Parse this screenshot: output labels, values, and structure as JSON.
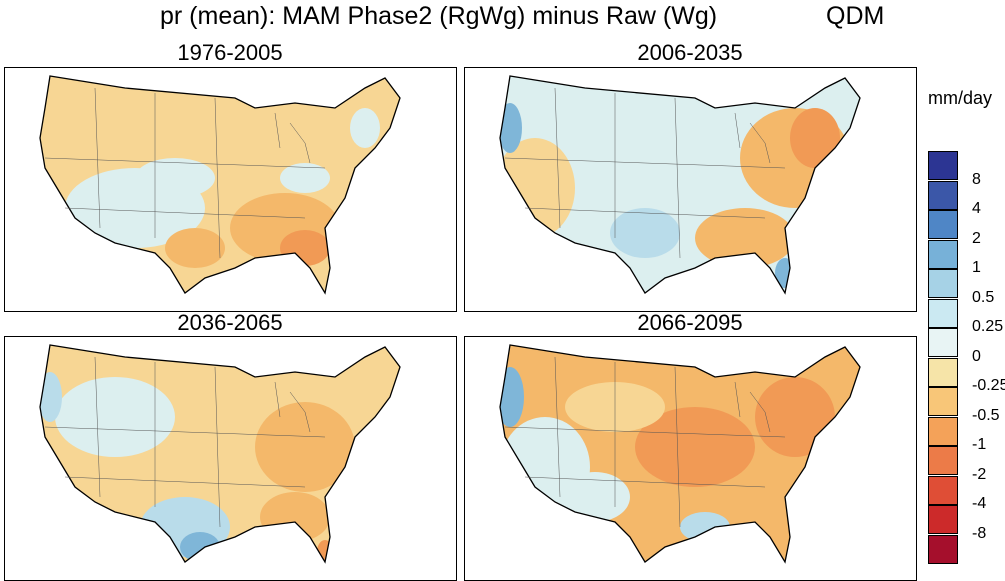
{
  "title": {
    "main": "pr (mean): MAM Phase2 (RgWg) minus Raw (Wg)",
    "method": "QDM"
  },
  "panels": [
    {
      "id": "p1",
      "label": "1976-2005"
    },
    {
      "id": "p2",
      "label": "2006-2035"
    },
    {
      "id": "p3",
      "label": "2036-2065"
    },
    {
      "id": "p4",
      "label": "2066-2095"
    }
  ],
  "colorbar": {
    "units": "mm/day",
    "labels": [
      "8",
      "4",
      "2",
      "1",
      "0.5",
      "0.25",
      "0",
      "-0.25",
      "-0.5",
      "-1",
      "-2",
      "-4",
      "-8"
    ],
    "colors": [
      "#2c3593",
      "#3b57a8",
      "#4f86c6",
      "#77b1d8",
      "#a6d2e6",
      "#cbe9f2",
      "#e8f4f4",
      "#f6e4a8",
      "#f8c678",
      "#f4a259",
      "#ec7b48",
      "#df4e36",
      "#cc2a2a",
      "#a50f2c"
    ]
  },
  "colors": {
    "land_base": "#f3e9c6",
    "warm_light": "#f7d694",
    "warm_mid": "#f4b86a",
    "warm_strong": "#f19a55",
    "cool_light": "#dcefef",
    "cool_mid": "#b9dcea",
    "cool_strong": "#7fb6d8"
  }
}
